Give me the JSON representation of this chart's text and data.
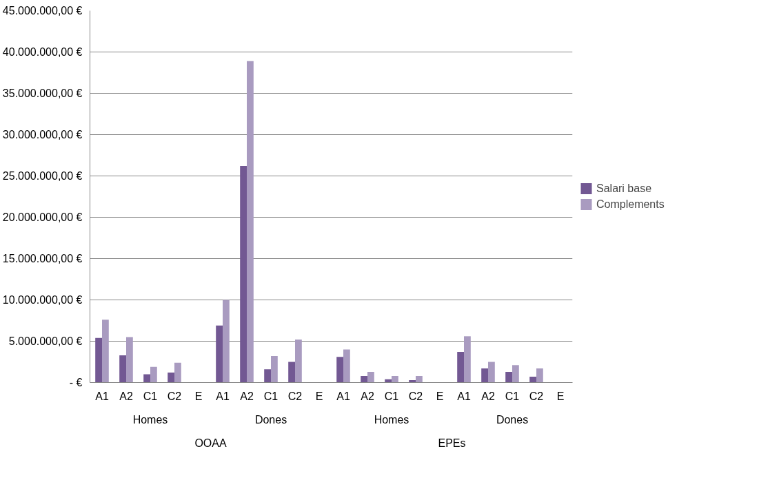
{
  "chart_data": {
    "type": "bar",
    "categories": [
      "A1",
      "A2",
      "C1",
      "C2",
      "E",
      "A1",
      "A2",
      "C1",
      "C2",
      "E",
      "A1",
      "A2",
      "C1",
      "C2",
      "E",
      "A1",
      "A2",
      "C1",
      "C2",
      "E"
    ],
    "series": [
      {
        "name": "Salari base",
        "color": "#725893",
        "values": [
          5400000,
          3300000,
          1000000,
          1200000,
          0,
          6900000,
          26200000,
          1600000,
          2500000,
          0,
          3100000,
          800000,
          400000,
          300000,
          0,
          3700000,
          1700000,
          1300000,
          700000,
          0
        ]
      },
      {
        "name": "Complements",
        "color": "#a99bc0",
        "values": [
          7600000,
          5500000,
          1900000,
          2400000,
          0,
          10000000,
          38900000,
          3200000,
          5200000,
          0,
          4000000,
          1300000,
          800000,
          800000,
          0,
          5600000,
          2500000,
          2100000,
          1700000,
          0
        ]
      }
    ],
    "annotations": [
      "Homes",
      "Dones",
      "Homes",
      "Dones",
      "OOAA",
      "EPEs"
    ],
    "ylim": [
      0,
      45000000
    ],
    "yticks": [
      {
        "value": 0,
        "label": "- €"
      },
      {
        "value": 5000000,
        "label": "5.000.000,00 €"
      },
      {
        "value": 10000000,
        "label": "10.000.000,00 €"
      },
      {
        "value": 15000000,
        "label": "15.000.000,00 €"
      },
      {
        "value": 20000000,
        "label": "20.000.000,00 €"
      },
      {
        "value": 25000000,
        "label": "25.000.000,00 €"
      },
      {
        "value": 30000000,
        "label": "30.000.000,00 €"
      },
      {
        "value": 35000000,
        "label": "35.000.000,00 €"
      },
      {
        "value": 40000000,
        "label": "40.000.000,00 €"
      },
      {
        "value": 45000000,
        "label": "45.000.000,00 €"
      }
    ],
    "grid": "y",
    "legend": "right"
  }
}
